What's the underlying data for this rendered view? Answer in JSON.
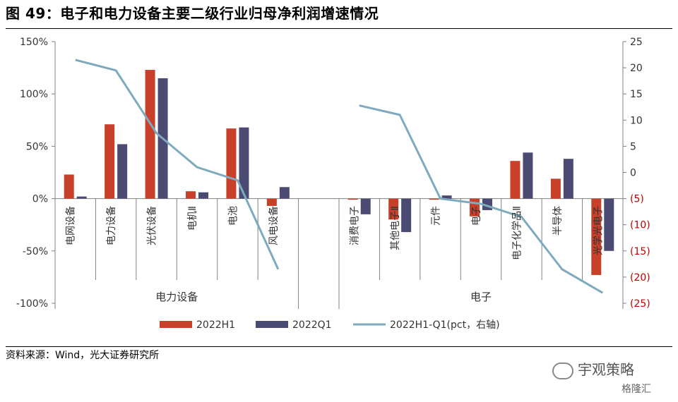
{
  "title": "图 49：电子和电力设备主要二级行业归母净利润增速情况",
  "source": "资料来源：Wind，光大证券研究所",
  "watermark": {
    "brand": "宇观策略",
    "site": "格隆汇"
  },
  "colors": {
    "h1": "#C8402A",
    "q1": "#4B4A72",
    "line": "#7FAABE",
    "neg_tick": "#C00000",
    "axis": "#808080"
  },
  "chart_data": {
    "type": "bar",
    "categories": [
      "电网设备",
      "电力设备",
      "光伏设备",
      "电机Ⅱ",
      "电池",
      "风电设备",
      "",
      "消费电子",
      "其他电子Ⅱ",
      "元件",
      "电子",
      "电子化学品Ⅱ",
      "半导体",
      "光学光电子"
    ],
    "groups": [
      {
        "label": "电力设备",
        "from": 0,
        "to": 5
      },
      {
        "label": "电子",
        "from": 7,
        "to": 13
      }
    ],
    "series": [
      {
        "name": "2022H1",
        "axis": "left",
        "kind": "bar",
        "values": [
          0.23,
          0.71,
          1.23,
          0.07,
          0.67,
          -0.07,
          null,
          -0.01,
          -0.2,
          -0.01,
          -0.17,
          0.36,
          0.19,
          -0.73
        ]
      },
      {
        "name": "2022Q1",
        "axis": "left",
        "kind": "bar",
        "values": [
          0.02,
          0.52,
          1.15,
          0.06,
          0.68,
          0.11,
          null,
          -0.15,
          -0.32,
          0.03,
          -0.11,
          0.44,
          0.38,
          -0.5
        ]
      },
      {
        "name": "2022H1-Q1(pct，右轴)",
        "axis": "right",
        "kind": "line",
        "values": [
          21.5,
          19.5,
          7.5,
          1.0,
          -1.5,
          -18.5,
          null,
          12.8,
          11.0,
          -5.0,
          -6.0,
          -8.5,
          -18.5,
          -23.0
        ]
      }
    ],
    "y_left": {
      "min": -1.0,
      "max": 1.5,
      "step": 0.5,
      "tick_labels": [
        "-100%",
        "-50%",
        "0%",
        "50%",
        "100%",
        "150%"
      ]
    },
    "y_right": {
      "min": -25,
      "max": 25,
      "step": 5,
      "tick_labels": [
        "(25)",
        "(20)",
        "(15)",
        "(10)",
        "(5)",
        "0",
        "5",
        "10",
        "15",
        "20",
        "25"
      ]
    },
    "legend_position": "bottom",
    "grid": false
  }
}
